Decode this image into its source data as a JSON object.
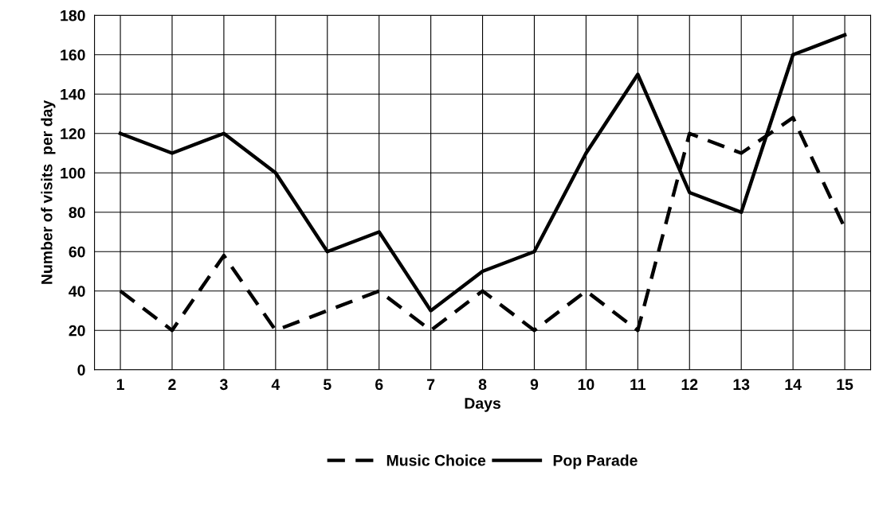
{
  "chart_data": {
    "type": "line",
    "xlabel": "Days",
    "ylabel": "Number of visits  per day",
    "categories": [
      "1",
      "2",
      "3",
      "4",
      "5",
      "6",
      "7",
      "8",
      "9",
      "10",
      "11",
      "12",
      "13",
      "14",
      "15"
    ],
    "series": [
      {
        "name": "Music Choice",
        "color": "#000000",
        "line_style": "dashed",
        "values": [
          40,
          20,
          58,
          20,
          30,
          40,
          20,
          40,
          20,
          40,
          20,
          120,
          110,
          128,
          72
        ]
      },
      {
        "name": "Pop Parade",
        "color": "#000000",
        "line_style": "solid",
        "values": [
          120,
          110,
          120,
          100,
          60,
          70,
          30,
          50,
          60,
          110,
          150,
          90,
          80,
          160,
          170
        ]
      }
    ],
    "ylim": [
      0,
      180
    ],
    "yticks": [
      0,
      20,
      40,
      60,
      80,
      100,
      120,
      140,
      160,
      180
    ],
    "grid": true,
    "legend": "bottom"
  }
}
